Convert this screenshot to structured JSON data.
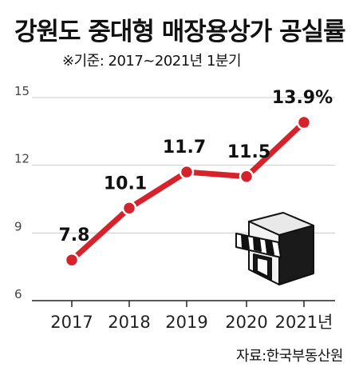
{
  "title": "강원도 중대형 매장용상가 공실률",
  "subtitle": "※기준: 2017~2021년 1분기",
  "source": "자료:한국부동산원",
  "colors": {
    "line": "#d6232b",
    "grid": "#c8c8c8",
    "axis": "#222222"
  },
  "icon": "storefront-icon",
  "chart_data": {
    "type": "line",
    "categories": [
      "2017",
      "2018",
      "2019",
      "2020",
      "2021년"
    ],
    "series": [
      {
        "values": [
          7.8,
          10.1,
          11.7,
          11.5,
          13.9
        ]
      }
    ],
    "data_labels": [
      "7.8",
      "10.1",
      "11.7",
      "11.5",
      "13.9%"
    ],
    "yticks": [
      6,
      9,
      12,
      15
    ],
    "ylim": [
      6,
      15
    ],
    "grid": "horizontal"
  }
}
